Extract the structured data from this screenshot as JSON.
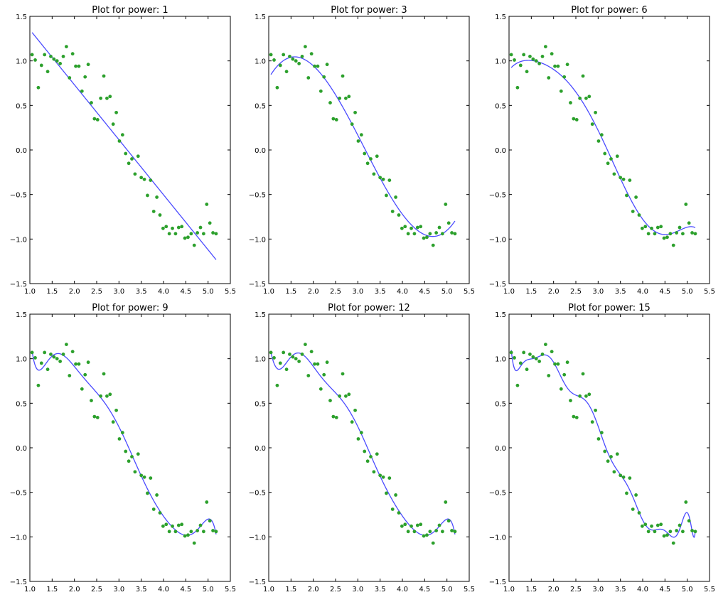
{
  "chart_data": [
    {
      "type": "scatter",
      "title": "Plot for power: 1",
      "power": 1,
      "xlim": [
        1.0,
        5.5
      ],
      "ylim": [
        -1.5,
        1.5
      ]
    },
    {
      "type": "scatter",
      "title": "Plot for power: 3",
      "power": 3,
      "xlim": [
        1.0,
        5.5
      ],
      "ylim": [
        -1.5,
        1.5
      ]
    },
    {
      "type": "scatter",
      "title": "Plot for power: 6",
      "power": 6,
      "xlim": [
        1.0,
        5.5
      ],
      "ylim": [
        -1.5,
        1.5
      ]
    },
    {
      "type": "scatter",
      "title": "Plot for power: 9",
      "power": 9,
      "xlim": [
        1.0,
        5.5
      ],
      "ylim": [
        -1.5,
        1.5
      ]
    },
    {
      "type": "scatter",
      "title": "Plot for power: 12",
      "power": 12,
      "xlim": [
        1.0,
        5.5
      ],
      "ylim": [
        -1.5,
        1.5
      ]
    },
    {
      "type": "scatter",
      "title": "Plot for power: 15",
      "power": 15,
      "xlim": [
        1.0,
        5.5
      ],
      "ylim": [
        -1.5,
        1.5
      ]
    }
  ],
  "shared": {
    "x_ticks": [
      "1.0",
      "1.5",
      "2.0",
      "2.5",
      "3.0",
      "3.5",
      "4.0",
      "4.5",
      "5.0",
      "5.5"
    ],
    "y_ticks": [
      "1.5",
      "1.0",
      "0.5",
      "0.0",
      "−0.5",
      "−1.0",
      "−1.5"
    ],
    "points": {
      "x": [
        1.05,
        1.12,
        1.19,
        1.26,
        1.33,
        1.4,
        1.47,
        1.54,
        1.61,
        1.68,
        1.75,
        1.82,
        1.89,
        1.96,
        2.03,
        2.1,
        2.17,
        2.24,
        2.31,
        2.38,
        2.45,
        2.52,
        2.59,
        2.66,
        2.73,
        2.8,
        2.87,
        2.94,
        3.01,
        3.08,
        3.15,
        3.22,
        3.29,
        3.36,
        3.43,
        3.5,
        3.57,
        3.64,
        3.71,
        3.78,
        3.85,
        3.92,
        3.99,
        4.06,
        4.13,
        4.2,
        4.27,
        4.34,
        4.41,
        4.48,
        4.55,
        4.62,
        4.69,
        4.76,
        4.83,
        4.9,
        4.97,
        5.04,
        5.11,
        5.18
      ],
      "y": [
        1.07,
        1.01,
        0.7,
        0.95,
        1.07,
        0.88,
        1.05,
        1.02,
        1.0,
        0.97,
        1.05,
        1.16,
        0.81,
        1.08,
        0.94,
        0.94,
        0.66,
        0.82,
        0.96,
        0.53,
        0.35,
        0.34,
        0.58,
        0.83,
        0.58,
        0.6,
        0.29,
        0.42,
        0.1,
        0.17,
        -0.04,
        -0.15,
        -0.1,
        -0.27,
        -0.07,
        -0.31,
        -0.33,
        -0.51,
        -0.34,
        -0.69,
        -0.53,
        -0.73,
        -0.88,
        -0.86,
        -0.94,
        -0.88,
        -0.94,
        -0.87,
        -0.86,
        -0.99,
        -0.98,
        -0.94,
        -1.07,
        -0.93,
        -0.87,
        -0.94,
        -0.61,
        -0.82,
        -0.93,
        -0.94
      ]
    },
    "colors": {
      "points": "#2ca02c",
      "fit": "#4b4bff",
      "frame": "#000000"
    }
  }
}
